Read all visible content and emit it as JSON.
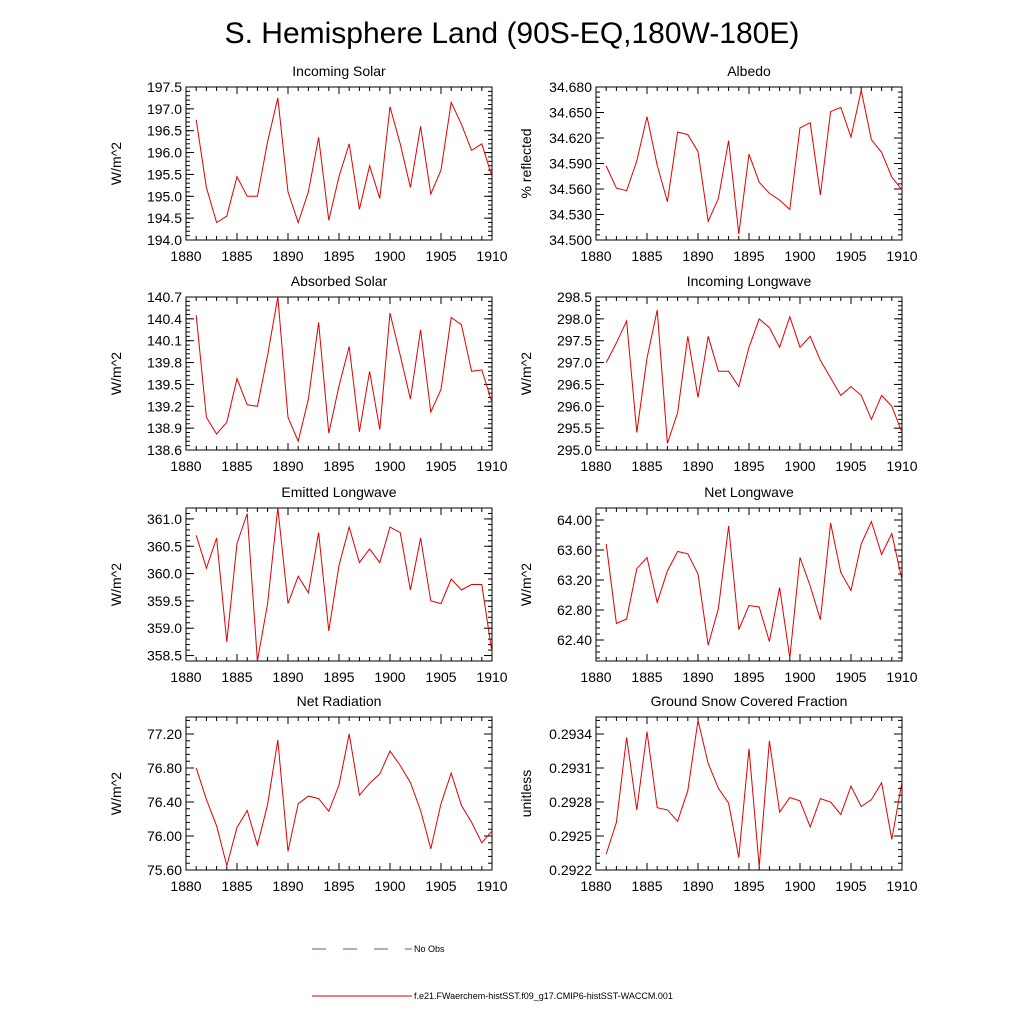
{
  "figure": {
    "title": "S. Hemisphere Land (90S-EQ,180W-180E)"
  },
  "legend": {
    "entries": [
      {
        "label": "No Obs",
        "color": "#5a5aaa",
        "style": "dashed"
      },
      {
        "label": "f.e21.FWaerchem-histSST.f09_g17.CMIP6-histSST-WACCM.001",
        "color": "#e00000",
        "style": "solid"
      }
    ]
  },
  "chart_data": [
    {
      "type": "line",
      "title": "Incoming Solar",
      "ylabel": "W/m^2",
      "xlim": [
        1880,
        1910
      ],
      "ylim": [
        194.0,
        197.5
      ],
      "xticks": [
        1880,
        1885,
        1890,
        1895,
        1900,
        1905,
        1910
      ],
      "yticks": [
        194.0,
        194.5,
        195.0,
        195.5,
        196.0,
        196.5,
        197.0,
        197.5
      ],
      "ytick_labels": [
        "194.0",
        "194.5",
        "195.0",
        "195.5",
        "196.0",
        "196.5",
        "197.0",
        "197.5"
      ],
      "series": [
        {
          "color": "#e00000",
          "x": [
            1881,
            1882,
            1883,
            1884,
            1885,
            1886,
            1887,
            1888,
            1889,
            1890,
            1891,
            1892,
            1893,
            1894,
            1895,
            1896,
            1897,
            1898,
            1899,
            1900,
            1901,
            1902,
            1903,
            1904,
            1905,
            1906,
            1907,
            1908,
            1909,
            1910
          ],
          "values": [
            196.75,
            195.2,
            194.4,
            194.55,
            195.45,
            195.0,
            195.0,
            196.25,
            197.25,
            195.1,
            194.4,
            195.1,
            196.35,
            194.45,
            195.45,
            196.2,
            194.7,
            195.7,
            194.95,
            197.05,
            196.2,
            195.2,
            196.6,
            195.05,
            195.6,
            197.15,
            196.65,
            196.05,
            196.2,
            195.45
          ]
        }
      ]
    },
    {
      "type": "line",
      "title": "Albedo",
      "ylabel": "% reflected",
      "xlim": [
        1880,
        1910
      ],
      "ylim": [
        34.5,
        34.68
      ],
      "xticks": [
        1880,
        1885,
        1890,
        1895,
        1900,
        1905,
        1910
      ],
      "yticks": [
        34.5,
        34.53,
        34.56,
        34.59,
        34.62,
        34.65,
        34.68
      ],
      "ytick_labels": [
        "34.500",
        "34.530",
        "34.560",
        "34.590",
        "34.620",
        "34.650",
        "34.680"
      ],
      "series": [
        {
          "color": "#e00000",
          "x": [
            1881,
            1882,
            1883,
            1884,
            1885,
            1886,
            1887,
            1888,
            1889,
            1890,
            1891,
            1892,
            1893,
            1894,
            1895,
            1896,
            1897,
            1898,
            1899,
            1900,
            1901,
            1902,
            1903,
            1904,
            1905,
            1906,
            1907,
            1908,
            1909,
            1910
          ],
          "values": [
            34.587,
            34.561,
            34.558,
            34.593,
            34.645,
            34.588,
            34.545,
            34.627,
            34.624,
            34.604,
            34.522,
            34.549,
            34.617,
            34.507,
            34.601,
            34.568,
            34.555,
            34.547,
            34.536,
            34.632,
            34.638,
            34.553,
            34.651,
            34.656,
            34.621,
            34.676,
            34.618,
            34.603,
            34.574,
            34.559
          ]
        }
      ]
    },
    {
      "type": "line",
      "title": "Absorbed Solar",
      "ylabel": "W/m^2",
      "xlim": [
        1880,
        1910
      ],
      "ylim": [
        138.6,
        140.7
      ],
      "xticks": [
        1880,
        1885,
        1890,
        1895,
        1900,
        1905,
        1910
      ],
      "yticks": [
        138.6,
        138.9,
        139.2,
        139.5,
        139.8,
        140.1,
        140.4,
        140.7
      ],
      "ytick_labels": [
        "138.6",
        "138.9",
        "139.2",
        "139.5",
        "139.8",
        "140.1",
        "140.4",
        "140.7"
      ],
      "series": [
        {
          "color": "#e00000",
          "x": [
            1881,
            1882,
            1883,
            1884,
            1885,
            1886,
            1887,
            1888,
            1889,
            1890,
            1891,
            1892,
            1893,
            1894,
            1895,
            1896,
            1897,
            1898,
            1899,
            1900,
            1901,
            1902,
            1903,
            1904,
            1905,
            1906,
            1907,
            1908,
            1909,
            1910
          ],
          "values": [
            140.45,
            139.05,
            138.82,
            138.98,
            139.58,
            139.22,
            139.2,
            139.9,
            140.7,
            139.05,
            138.72,
            139.3,
            140.35,
            138.83,
            139.48,
            140.02,
            138.85,
            139.68,
            138.88,
            140.48,
            139.9,
            139.3,
            140.25,
            139.12,
            139.43,
            140.42,
            140.32,
            139.68,
            139.7,
            139.25
          ]
        }
      ]
    },
    {
      "type": "line",
      "title": "Incoming Longwave",
      "ylabel": "W/m^2",
      "xlim": [
        1880,
        1910
      ],
      "ylim": [
        295.0,
        298.5
      ],
      "xticks": [
        1880,
        1885,
        1890,
        1895,
        1900,
        1905,
        1910
      ],
      "yticks": [
        295.0,
        295.5,
        296.0,
        296.5,
        297.0,
        297.5,
        298.0,
        298.5
      ],
      "ytick_labels": [
        "295.0",
        "295.5",
        "296.0",
        "296.5",
        "297.0",
        "297.5",
        "298.0",
        "298.5"
      ],
      "series": [
        {
          "color": "#e00000",
          "x": [
            1881,
            1882,
            1883,
            1884,
            1885,
            1886,
            1887,
            1888,
            1889,
            1890,
            1891,
            1892,
            1893,
            1894,
            1895,
            1896,
            1897,
            1898,
            1899,
            1900,
            1901,
            1902,
            1903,
            1904,
            1905,
            1906,
            1907,
            1908,
            1909,
            1910
          ],
          "values": [
            297.0,
            297.45,
            297.95,
            295.4,
            297.1,
            298.2,
            295.15,
            295.85,
            297.6,
            296.2,
            297.6,
            296.8,
            296.8,
            296.45,
            297.35,
            298.0,
            297.8,
            297.35,
            298.05,
            297.35,
            297.6,
            297.05,
            296.65,
            296.25,
            296.45,
            296.25,
            295.7,
            296.25,
            296.0,
            295.4
          ]
        }
      ]
    },
    {
      "type": "line",
      "title": "Emitted Longwave",
      "ylabel": "W/m^2",
      "xlim": [
        1880,
        1910
      ],
      "ylim": [
        358.4,
        361.2
      ],
      "xticks": [
        1880,
        1885,
        1890,
        1895,
        1900,
        1905,
        1910
      ],
      "yticks": [
        358.5,
        359.0,
        359.5,
        360.0,
        360.5,
        361.0
      ],
      "ytick_labels": [
        "358.5",
        "359.0",
        "359.5",
        "360.0",
        "360.5",
        "361.0"
      ],
      "series": [
        {
          "color": "#e00000",
          "x": [
            1881,
            1882,
            1883,
            1884,
            1885,
            1886,
            1887,
            1888,
            1889,
            1890,
            1891,
            1892,
            1893,
            1894,
            1895,
            1896,
            1897,
            1898,
            1899,
            1900,
            1901,
            1902,
            1903,
            1904,
            1905,
            1906,
            1907,
            1908,
            1909,
            1910
          ],
          "values": [
            360.7,
            360.1,
            360.65,
            358.75,
            360.55,
            361.1,
            358.4,
            359.45,
            361.2,
            359.45,
            359.95,
            359.65,
            360.75,
            358.95,
            360.15,
            360.85,
            360.2,
            360.45,
            360.2,
            360.85,
            360.75,
            359.7,
            360.65,
            359.5,
            359.45,
            359.9,
            359.7,
            359.8,
            359.8,
            358.55
          ]
        }
      ]
    },
    {
      "type": "line",
      "title": "Net Longwave",
      "ylabel": "W/m^2",
      "xlim": [
        1880,
        1910
      ],
      "ylim": [
        62.12,
        64.16
      ],
      "xticks": [
        1880,
        1885,
        1890,
        1895,
        1900,
        1905,
        1910
      ],
      "yticks": [
        62.4,
        62.8,
        63.2,
        63.6,
        64.0
      ],
      "ytick_labels": [
        "62.40",
        "62.80",
        "63.20",
        "63.60",
        "64.00"
      ],
      "series": [
        {
          "color": "#e00000",
          "x": [
            1881,
            1882,
            1883,
            1884,
            1885,
            1886,
            1887,
            1888,
            1889,
            1890,
            1891,
            1892,
            1893,
            1894,
            1895,
            1896,
            1897,
            1898,
            1899,
            1900,
            1901,
            1902,
            1903,
            1904,
            1905,
            1906,
            1907,
            1908,
            1909,
            1910
          ],
          "values": [
            63.68,
            62.62,
            62.68,
            63.35,
            63.5,
            62.9,
            63.32,
            63.58,
            63.55,
            63.28,
            62.33,
            62.82,
            63.92,
            62.54,
            62.86,
            62.84,
            62.38,
            63.1,
            62.16,
            63.5,
            63.12,
            62.67,
            63.96,
            63.3,
            63.06,
            63.68,
            63.98,
            63.54,
            63.82,
            63.2
          ]
        }
      ]
    },
    {
      "type": "line",
      "title": "Net Radiation",
      "ylabel": "W/m^2",
      "xlim": [
        1880,
        1910
      ],
      "ylim": [
        75.6,
        77.4
      ],
      "xticks": [
        1880,
        1885,
        1890,
        1895,
        1900,
        1905,
        1910
      ],
      "yticks": [
        75.6,
        76.0,
        76.4,
        76.8,
        77.2
      ],
      "ytick_labels": [
        "75.60",
        "76.00",
        "76.40",
        "76.80",
        "77.20"
      ],
      "series": [
        {
          "color": "#e00000",
          "x": [
            1881,
            1882,
            1883,
            1884,
            1885,
            1886,
            1887,
            1888,
            1889,
            1890,
            1891,
            1892,
            1893,
            1894,
            1895,
            1896,
            1897,
            1898,
            1899,
            1900,
            1901,
            1902,
            1903,
            1904,
            1905,
            1906,
            1907,
            1908,
            1909,
            1910
          ],
          "values": [
            76.8,
            76.43,
            76.12,
            75.65,
            76.1,
            76.3,
            75.89,
            76.37,
            77.13,
            75.82,
            76.38,
            76.47,
            76.44,
            76.29,
            76.6,
            77.2,
            76.48,
            76.62,
            76.73,
            77.0,
            76.83,
            76.63,
            76.3,
            75.85,
            76.38,
            76.74,
            76.36,
            76.16,
            75.92,
            76.06
          ]
        }
      ]
    },
    {
      "type": "line",
      "title": "Ground Snow Covered Fraction",
      "ylabel": "unitless",
      "xlim": [
        1880,
        1910
      ],
      "ylim": [
        0.2922,
        0.29355
      ],
      "xticks": [
        1880,
        1885,
        1890,
        1895,
        1900,
        1905,
        1910
      ],
      "yticks": [
        0.2922,
        0.2925,
        0.2928,
        0.2931,
        0.2934
      ],
      "ytick_labels": [
        "0.2922",
        "0.2925",
        "0.2928",
        "0.2931",
        "0.2934"
      ],
      "series": [
        {
          "color": "#e00000",
          "x": [
            1881,
            1882,
            1883,
            1884,
            1885,
            1886,
            1887,
            1888,
            1889,
            1890,
            1891,
            1892,
            1893,
            1894,
            1895,
            1896,
            1897,
            1898,
            1899,
            1900,
            1901,
            1902,
            1903,
            1904,
            1905,
            1906,
            1907,
            1908,
            1909,
            1910
          ],
          "values": [
            0.29234,
            0.29262,
            0.29337,
            0.29273,
            0.29342,
            0.29275,
            0.29273,
            0.29263,
            0.2929,
            0.29352,
            0.29314,
            0.29292,
            0.29279,
            0.29231,
            0.29327,
            0.29223,
            0.29334,
            0.29271,
            0.29284,
            0.29281,
            0.29258,
            0.29283,
            0.2928,
            0.29269,
            0.29294,
            0.29276,
            0.29282,
            0.29297,
            0.29247,
            0.29298
          ]
        }
      ]
    }
  ]
}
